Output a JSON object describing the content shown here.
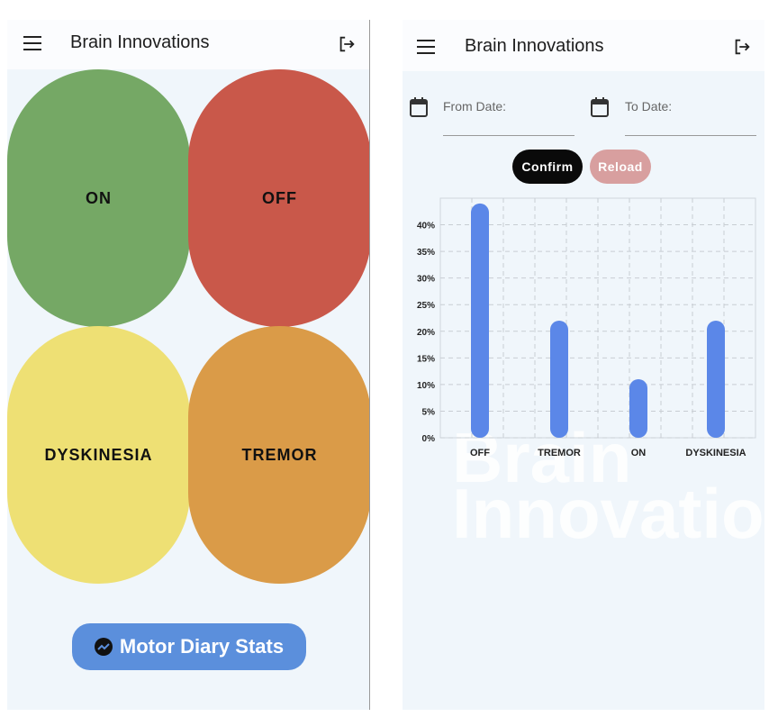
{
  "left_screen": {
    "app_title": "Brain Innovations",
    "tiles": [
      {
        "label": "ON",
        "color": "#75a865"
      },
      {
        "label": "OFF",
        "color": "#c9584a"
      },
      {
        "label": "DYSKINESIA",
        "color": "#eee074"
      },
      {
        "label": "TREMOR",
        "color": "#da9b48"
      }
    ],
    "stats_button": "Motor Diary Stats"
  },
  "right_screen": {
    "app_title": "Brain Innovations",
    "from_date_label": "From Date:",
    "to_date_label": "To Date:",
    "confirm_label": "Confirm",
    "reload_label": "Reload",
    "watermark": [
      "Brain",
      "Innovatio"
    ]
  },
  "chart_data": {
    "type": "bar",
    "categories": [
      "OFF",
      "TREMOR",
      "ON",
      "DYSKINESIA"
    ],
    "values": [
      44,
      22,
      11,
      22
    ],
    "yticks": [
      "0%",
      "5%",
      "10%",
      "15%",
      "20%",
      "25%",
      "30%",
      "35%",
      "40%"
    ],
    "ylim": [
      0,
      45
    ],
    "bar_color": "#5b87e8",
    "grid": true
  }
}
